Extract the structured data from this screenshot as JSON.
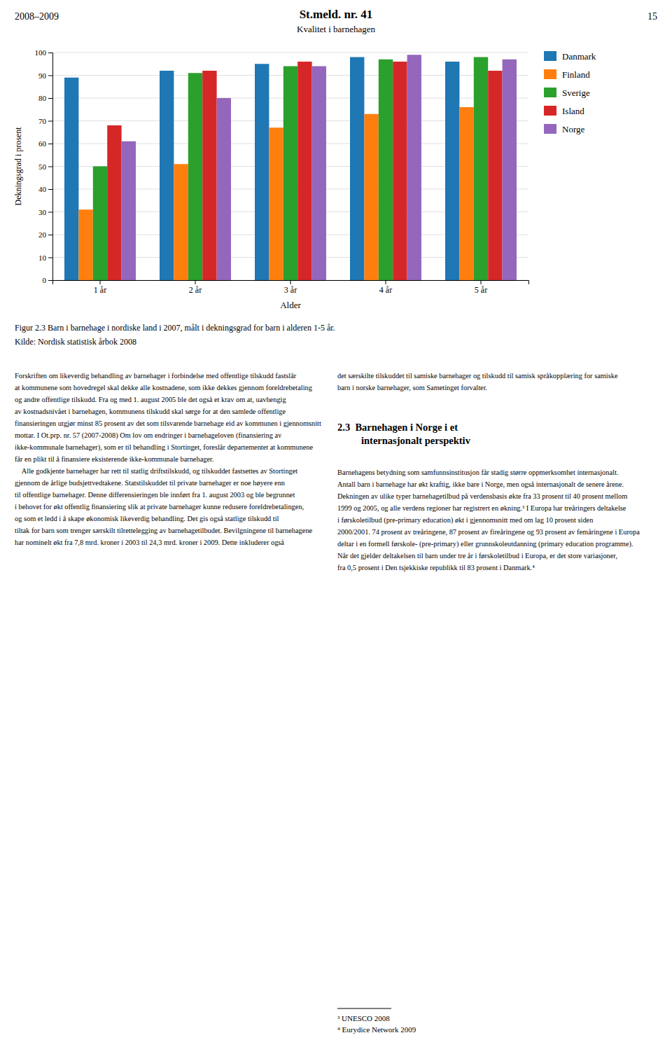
{
  "header_left": "2008–2009",
  "header_center": "St.meld. nr. 41",
  "header_subtitle": "Kvalitet i barnehagen",
  "header_right": "15",
  "chart_data": {
    "type": "bar",
    "title": "Figur 2.3  Barn i barnehage i nordiske land i 2007, målt i dekningsgrad for barn i alderen 1-5 år.",
    "source": "Kilde: Nordisk statistisk årbok 2008",
    "xlabel": "Alder",
    "ylabel": "Dekningsgrad i prosent",
    "categories": [
      "1 år",
      "2 år",
      "3 år",
      "4 år",
      "5 år"
    ],
    "series": [
      {
        "name": "Danmark",
        "values": [
          89,
          92,
          95,
          98,
          96
        ]
      },
      {
        "name": "Finland",
        "values": [
          31,
          51,
          67,
          73,
          76
        ]
      },
      {
        "name": "Sverige",
        "values": [
          50,
          91,
          94,
          97,
          98
        ]
      },
      {
        "name": "Island",
        "values": [
          68,
          92,
          96,
          96,
          92
        ]
      },
      {
        "name": "Norge",
        "values": [
          61,
          80,
          94,
          99,
          97
        ]
      }
    ],
    "ylim": [
      0,
      100
    ],
    "yticks": [
      0,
      10,
      20,
      30,
      40,
      50,
      60,
      70,
      80,
      90,
      100
    ],
    "grid": true,
    "legend": "right"
  },
  "body_left": [
    "Forskriften om likeverdig behandling av barnehager i forbindelse med offentlige tilskudd fastslår",
    "at kommunene som hovedregel skal dekke alle kostnadene, som ikke dekkes gjennom foreldrebetaling",
    "og andre offentlige tilskudd. Fra og med 1. august 2005 ble det også et krav om at, uavhengig",
    "av kostnadsnivået i barnehagen, kommunens tilskudd skal sørge for at den samlede offentlige",
    "finansieringen utgjør minst 85 prosent av det som tilsvarende barnehage eid av kommunen i gjennomsnitt",
    "mottar. I Ot.prp. nr. 57 (2007-2008) Om lov om endringer i barnehageloven (finansiering av",
    "ikke-kommunale barnehager), som er til behandling i Stortinget, foreslår departementet at kommunene",
    "får en plikt til å finansiere eksisterende ikke-kommunale barnehager.",
    "    Alle godkjente barnehager har rett til statlig driftstilskudd, og tilskuddet fastsettes av Stortinget",
    "gjennom de årlige budsjettvedtakene. Statstilskuddet til private barnehager er noe høyere enn",
    "til offentlige barnehager. Denne differensieringen ble innført fra 1. august 2003 og ble begrunnet",
    "i behovet for økt offentlig finansiering slik at private barnehager kunne redusere foreldrebetalingen,",
    "og som et ledd i å skape økonomisk likeverdig behandling. Det gis også statlige tilskudd til",
    "tiltak for barn som trenger særskilt tilrettelegging av barnehagetilbudet. Bevilgningene til barnehagene",
    "har nominelt økt fra 7,8 mrd. kroner i 2003 til 24,3 mrd. kroner i 2009. Dette inkluderer også"
  ],
  "body_right": [
    "det særskilte tilskuddet til samiske barnehager og tilskudd til samisk språkopplæring for samiske",
    "barn i norske barnehager, som Sametinget forvalter."
  ],
  "section_header": [
    "2.3  Barnehagen i Norge i et",
    "internasjonalt perspektiv"
  ],
  "body_right_2": [
    "Barnehagens betydning som samfunnsinstitusjon får stadig større oppmerksomhet internasjonalt.",
    "Antall barn i barnehage har økt kraftig, ikke bare i Norge, men også internasjonalt de senere årene.",
    "Dekningen av ulike typer barnehagetilbud på verdensbasis økte fra 33 prosent til 40 prosent mellom",
    "1999 og 2005, og alle verdens regioner har registrert en økning.³ I Europa har treåringers deltakelse",
    "i førskoletilbud (pre-primary education) økt i gjennomsnitt med om lag 10 prosent siden",
    "2000/2001. 74 prosent av treåringene, 87 prosent av fireåringene og 93 prosent av femåringene i Europa",
    "deltar i en formell førskole- (pre-primary) eller grunnskoleutdanning (primary education programme).",
    "Når det gjelder deltakelsen til barn under tre år i førskoletilbud i Europa, er det store variasjoner,",
    "fra 0,5 prosent i Den tsjekkiske republikk til 83 prosent i Danmark.⁴"
  ],
  "footnotes": [
    "³ UNESCO 2008",
    "⁴ Eurydice Network 2009"
  ]
}
